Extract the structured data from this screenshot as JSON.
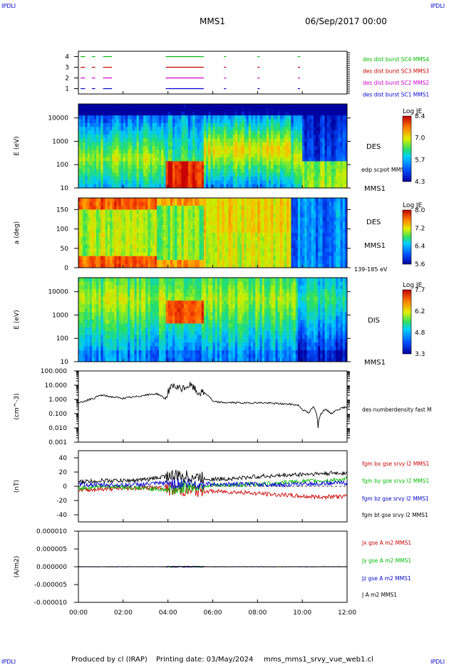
{
  "header": {
    "corner_left": "IPDLI",
    "corner_right": "IPDLI",
    "mission": "MMS1",
    "date": "06/Sep/2017 00:00"
  },
  "footer": {
    "produced_by": "Produced by cl (IRAP)",
    "printing_date": "Printing date: 03/May/2024",
    "filename": "mms_mms1_srvy_vue_web1.cl",
    "corner_left": "IPDLI",
    "corner_right": "IPDLI"
  },
  "time_axis": {
    "ticks": [
      "00:00",
      "02:00",
      "04:00",
      "06:00",
      "08:00",
      "10:00",
      "12:00"
    ]
  },
  "chart_data": [
    {
      "id": "burst",
      "type": "scatter",
      "title": "",
      "ylabel": "",
      "ylim": [
        0.5,
        4.5
      ],
      "yticks": [
        "1",
        "2",
        "3",
        "4"
      ],
      "series": [
        {
          "name": "des dist burst SC1 MMS1",
          "color": "#0000cc",
          "level": 1,
          "intervals": [
            [
              0.1,
              0.3
            ],
            [
              0.6,
              0.75
            ],
            [
              1.1,
              1.5
            ],
            [
              3.9,
              5.6
            ],
            [
              6.5,
              6.6
            ],
            [
              8.0,
              8.1
            ],
            [
              9.8,
              9.9
            ]
          ]
        },
        {
          "name": "des dist burst SC2 MMS2",
          "color": "#cc00cc",
          "level": 2,
          "intervals": [
            [
              0.1,
              0.3
            ],
            [
              0.6,
              0.75
            ],
            [
              1.1,
              1.5
            ],
            [
              3.9,
              5.6
            ],
            [
              6.5,
              6.6
            ],
            [
              8.0,
              8.1
            ],
            [
              9.8,
              9.9
            ]
          ]
        },
        {
          "name": "des dist burst SC3 MMS3",
          "color": "#cc0000",
          "level": 3,
          "intervals": [
            [
              0.1,
              0.3
            ],
            [
              0.6,
              0.75
            ],
            [
              1.1,
              1.5
            ],
            [
              3.9,
              5.6
            ],
            [
              6.5,
              6.6
            ],
            [
              8.0,
              8.1
            ],
            [
              9.8,
              9.9
            ]
          ]
        },
        {
          "name": "des dist burst SC4 MMS4",
          "color": "#00bb00",
          "level": 4,
          "intervals": [
            [
              0.1,
              0.3
            ],
            [
              0.6,
              0.75
            ],
            [
              1.1,
              1.5
            ],
            [
              3.9,
              5.6
            ],
            [
              6.5,
              6.6
            ],
            [
              8.0,
              8.1
            ],
            [
              9.8,
              9.9
            ]
          ]
        }
      ]
    },
    {
      "id": "des_energy",
      "type": "heatmap",
      "ylabel": "E (eV)",
      "yticks": [
        "10",
        "100",
        "1000",
        "10000"
      ],
      "right_labels": [
        "DES",
        "edp scpot MMS1",
        "MMS1"
      ],
      "colorbar": {
        "title": "Log JE",
        "ticks": [
          "8.4",
          "7.0",
          "5.7",
          "4.3"
        ]
      }
    },
    {
      "id": "des_pitch",
      "type": "heatmap",
      "ylabel": "a (deg)",
      "yticks": [
        "0",
        "50",
        "100",
        "150"
      ],
      "right_labels": [
        "DES",
        "MMS1",
        "139-185 eV"
      ],
      "colorbar": {
        "title": "Log JE",
        "ticks": [
          "8.0",
          "7.2",
          "6.4",
          "5.6"
        ]
      }
    },
    {
      "id": "dis_energy",
      "type": "heatmap",
      "ylabel": "E (eV)",
      "yticks": [
        "10",
        "100",
        "1000",
        "10000"
      ],
      "right_labels": [
        "DIS",
        "MMS1"
      ],
      "colorbar": {
        "title": "Log JE",
        "ticks": [
          "7.7",
          "6.2",
          "4.8",
          "3.3"
        ]
      }
    },
    {
      "id": "density",
      "type": "line",
      "ylabel": "(cm^-3)",
      "log": true,
      "ylim": [
        0.001,
        100
      ],
      "yticks": [
        "100.000",
        "10.000",
        "1.000",
        "0.100",
        "0.010",
        "0.001"
      ],
      "series": [
        {
          "name": "des numberdensity fast M",
          "color": "#000000",
          "x": [
            0,
            0.3,
            0.7,
            1.0,
            1.5,
            2.0,
            2.5,
            3.0,
            3.5,
            3.9,
            4.2,
            4.6,
            5.0,
            5.3,
            5.6,
            6.0,
            6.5,
            7.0,
            7.5,
            8.0,
            8.5,
            9.0,
            9.5,
            9.8,
            10.0,
            10.3,
            10.5,
            10.7,
            11.0,
            11.3,
            11.6,
            12.0
          ],
          "y": [
            0.5,
            0.8,
            1.2,
            2.0,
            1.5,
            1.2,
            1.5,
            2.0,
            2.5,
            1.0,
            8.0,
            5.0,
            10.0,
            3.0,
            3.0,
            0.7,
            0.6,
            0.6,
            0.55,
            0.6,
            0.55,
            0.5,
            0.45,
            0.4,
            0.2,
            0.1,
            0.3,
            0.008,
            0.2,
            0.1,
            0.2,
            0.3
          ]
        }
      ]
    },
    {
      "id": "bfield",
      "type": "line",
      "ylabel": "(nT)",
      "ylim": [
        -50,
        50
      ],
      "yticks": [
        "40",
        "20",
        "0",
        "-20",
        "-40"
      ],
      "series": [
        {
          "name": "fgm bx gse srvy l2 MMS1",
          "color": "#cc0000",
          "x": [
            0,
            1,
            2,
            3,
            4,
            5,
            6,
            7,
            8,
            9,
            10,
            11,
            12
          ],
          "y": [
            -5,
            -4,
            -3,
            -2,
            -4,
            -6,
            -7,
            -8,
            -10,
            -12,
            -14,
            -15,
            -14
          ]
        },
        {
          "name": "fgm by gse srvy l2 MMS1",
          "color": "#00bb00",
          "x": [
            0,
            1,
            2,
            3,
            4,
            5,
            6,
            7,
            8,
            9,
            10,
            11,
            12
          ],
          "y": [
            -3,
            0,
            -1,
            -3,
            -5,
            0,
            1,
            2,
            3,
            5,
            7,
            8,
            10
          ]
        },
        {
          "name": "fgm bz gse srvy l2 MMS1",
          "color": "#0000cc",
          "x": [
            0,
            1,
            2,
            3,
            4,
            5,
            6,
            7,
            8,
            9,
            10,
            11,
            12
          ],
          "y": [
            3,
            2,
            2,
            3,
            5,
            4,
            3,
            3,
            3,
            2,
            3,
            4,
            5
          ]
        },
        {
          "name": "fgm bt gse srvy l2 MMS1",
          "color": "#000000",
          "x": [
            0,
            1,
            2,
            3,
            4,
            5,
            6,
            7,
            8,
            9,
            10,
            11,
            12
          ],
          "y": [
            6,
            8,
            8,
            9,
            15,
            14,
            10,
            11,
            14,
            15,
            17,
            18,
            19
          ]
        }
      ]
    },
    {
      "id": "current",
      "type": "line",
      "ylabel": "(A/m2)",
      "ylim": [
        -1e-05,
        1e-05
      ],
      "yticks": [
        "0.000010",
        "0.000005",
        "0.000000",
        "-0.000005",
        "-0.000010"
      ],
      "series": [
        {
          "name": "Jx gse A m2 MMS1",
          "color": "#cc0000",
          "x": [
            0,
            12
          ],
          "y": [
            0,
            0
          ]
        },
        {
          "name": "Jy gse A m2 MMS1",
          "color": "#00bb00",
          "x": [
            0,
            12
          ],
          "y": [
            0,
            0
          ]
        },
        {
          "name": "Jz gse A m2 MMS1",
          "color": "#0000cc",
          "x": [
            0,
            12
          ],
          "y": [
            0,
            0
          ]
        },
        {
          "name": "J A m2 MMS1",
          "color": "#000000",
          "x": [
            0,
            12
          ],
          "y": [
            0,
            0
          ]
        }
      ]
    }
  ]
}
